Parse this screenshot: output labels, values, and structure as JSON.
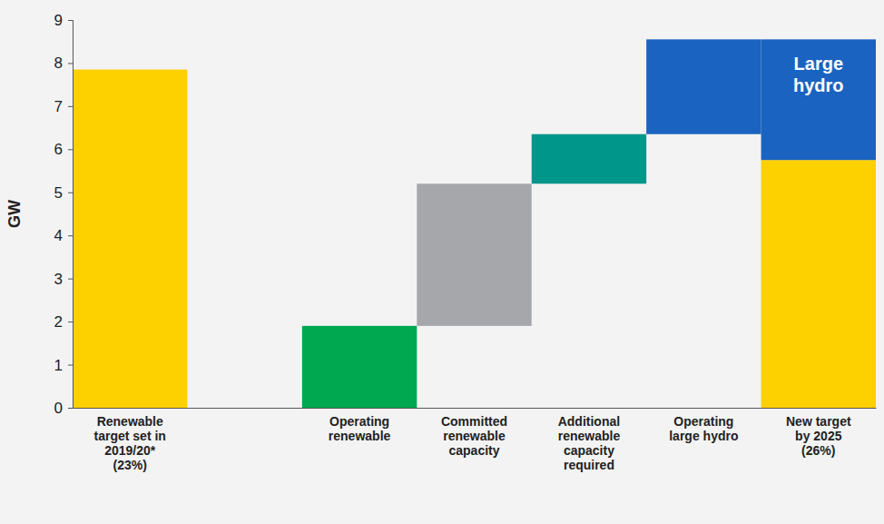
{
  "chart_data": {
    "type": "waterfall",
    "ylabel": "GW",
    "categories": [
      "Renewable target set in 2019/20* (23%)",
      null,
      "Operating renewable",
      "Committed renewable capacity",
      "Additional renewable capacity required",
      "Operating large hydro",
      "New target by 2025 (26%)"
    ],
    "series": [
      {
        "type": "total",
        "color": "#fdd000",
        "values": [
          7.85,
          null,
          null,
          null,
          null,
          null,
          5.75
        ]
      },
      {
        "type": "relative",
        "colors": [
          null,
          null,
          "#00a84f",
          "#a5a7aa",
          "#00968a",
          "#1a63c0",
          null
        ],
        "values": [
          null,
          null,
          1.9,
          3.3,
          1.15,
          2.2,
          null
        ]
      },
      {
        "type": "total",
        "name": "Large hydro",
        "color": "#1a63c0",
        "values": [
          null,
          null,
          null,
          null,
          null,
          null,
          2.8
        ]
      }
    ],
    "ylim": [
      0,
      9
    ],
    "yticks": [
      0,
      1,
      2,
      3,
      4,
      5,
      6,
      7,
      8,
      9
    ],
    "grid": false
  }
}
